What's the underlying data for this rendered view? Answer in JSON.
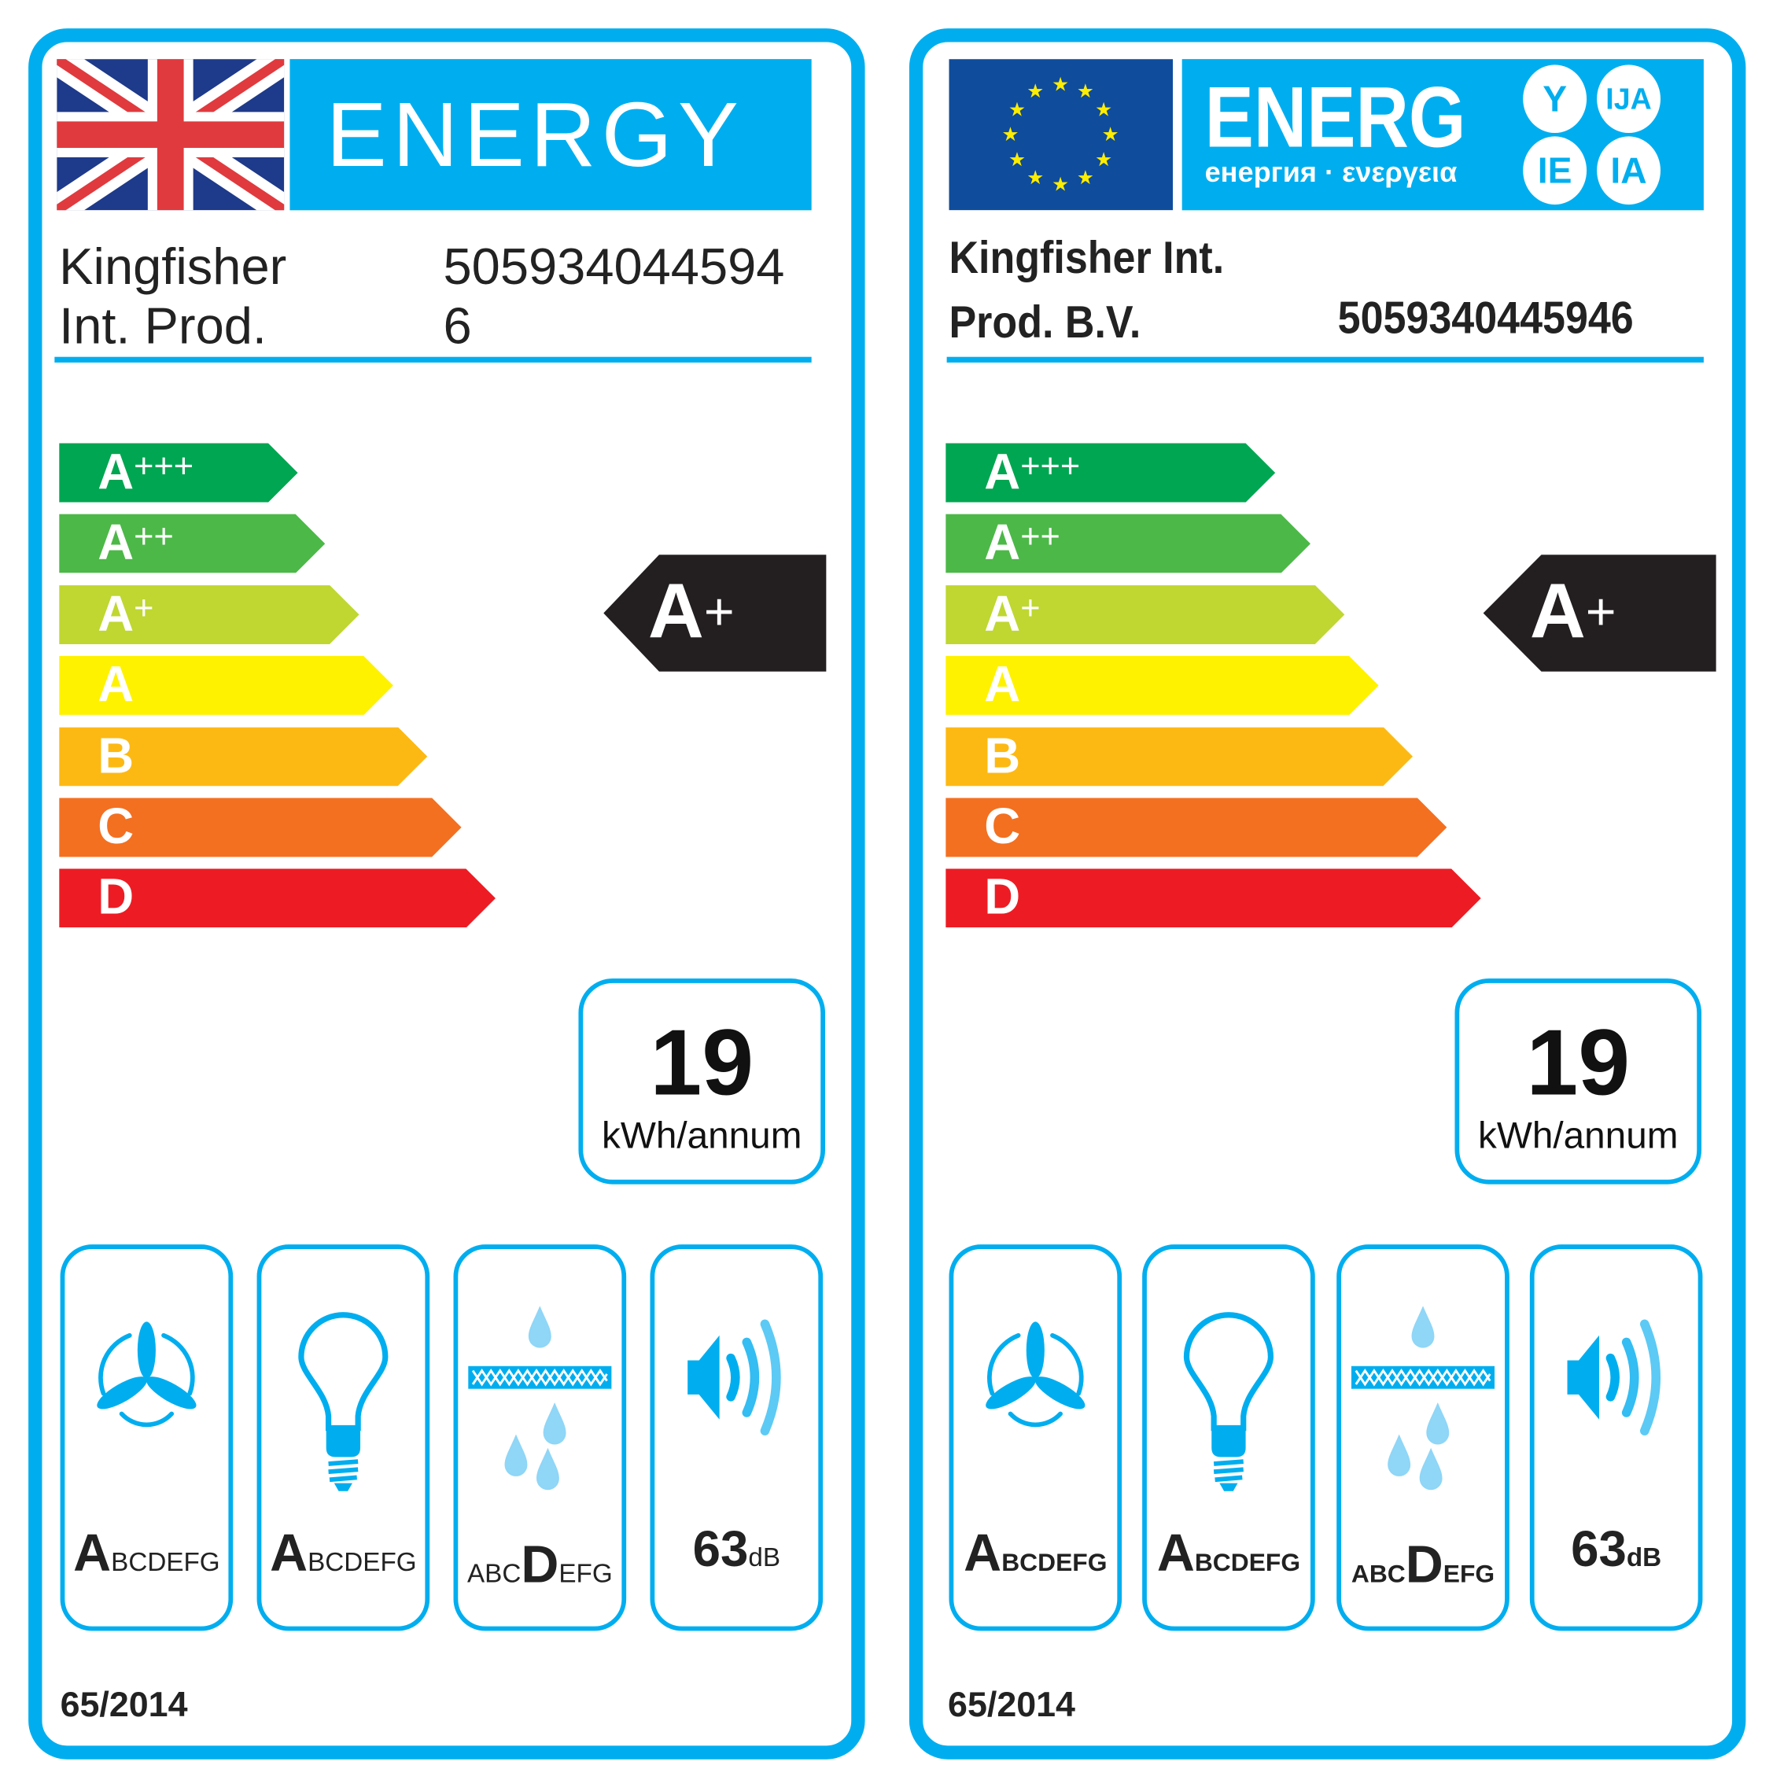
{
  "colors": {
    "accent": "#00aeef",
    "rating_arrow": "#231f20",
    "scale": [
      "#00a651",
      "#4cb848",
      "#bfd730",
      "#fff200",
      "#fdb913",
      "#f37021",
      "#ed1c24"
    ]
  },
  "scale": [
    {
      "letter": "A",
      "plus": "+++"
    },
    {
      "letter": "A",
      "plus": "++"
    },
    {
      "letter": "A",
      "plus": "+"
    },
    {
      "letter": "A",
      "plus": ""
    },
    {
      "letter": "B",
      "plus": ""
    },
    {
      "letter": "C",
      "plus": ""
    },
    {
      "letter": "D",
      "plus": ""
    }
  ],
  "labels": [
    {
      "flag": "uk-flag",
      "title": "ENERGY",
      "supplier": [
        "Kingfisher",
        "Int. Prod."
      ],
      "model": [
        "505934044594",
        "6"
      ],
      "rating": {
        "letter": "A",
        "plus": "+"
      },
      "consumption": {
        "value": "19",
        "unit": "kWh/annum"
      },
      "icons": [
        {
          "icon": "fan-icon",
          "pre": "",
          "big": "A",
          "post": "BCDEFG"
        },
        {
          "icon": "light-bulb-icon",
          "pre": "",
          "big": "A",
          "post": "BCDEFG"
        },
        {
          "icon": "grease-filter-icon",
          "pre": "ABC",
          "big": "D",
          "post": "EFG"
        }
      ],
      "noise": {
        "value": "63",
        "unit": "dB"
      },
      "regulation": "65/2014"
    },
    {
      "flag": "eu-flag",
      "title": "ENERG",
      "title_suffixes": [
        "Y",
        "IJA",
        "IE",
        "IA"
      ],
      "subtitle": "енергия · ενεργεια",
      "supplier": [
        "Kingfisher Int.",
        "Prod. B.V."
      ],
      "model": [
        "5059340445946"
      ],
      "rating": {
        "letter": "A",
        "plus": "+"
      },
      "consumption": {
        "value": "19",
        "unit": "kWh/annum"
      },
      "icons": [
        {
          "icon": "fan-icon",
          "pre": "",
          "big": "A",
          "post": "BCDEFG"
        },
        {
          "icon": "light-bulb-icon",
          "pre": "",
          "big": "A",
          "post": "BCDEFG"
        },
        {
          "icon": "grease-filter-icon",
          "pre": "ABC",
          "big": "D",
          "post": "EFG"
        }
      ],
      "noise": {
        "value": "63",
        "unit": "dB"
      },
      "regulation": "65/2014"
    }
  ]
}
